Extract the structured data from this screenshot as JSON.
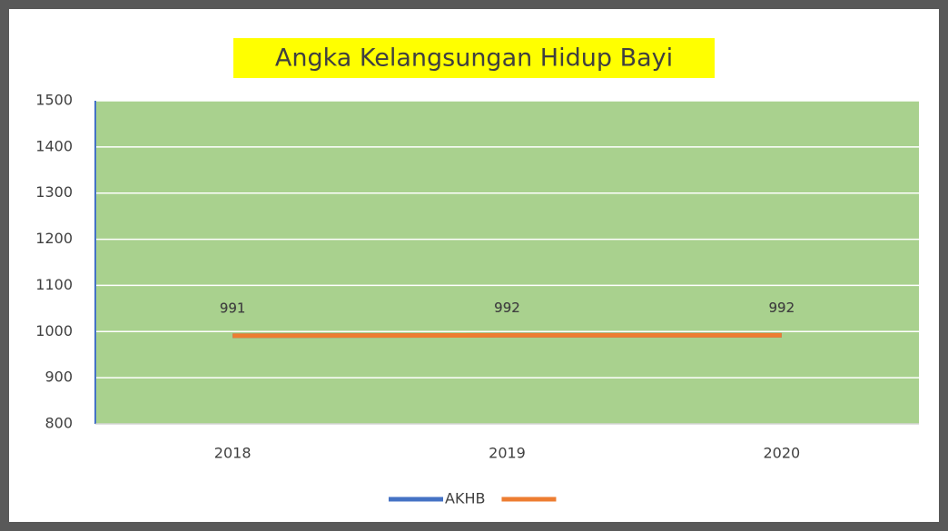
{
  "chart_data": {
    "type": "line",
    "title": "Angka Kelangsungan Hidup Bayi",
    "categories": [
      "2018",
      "2019",
      "2020"
    ],
    "series": [
      {
        "name": "AKHB",
        "color": "#4472c4",
        "values": [
          991,
          992,
          992
        ]
      },
      {
        "color": "#ed7d31",
        "values": [
          991,
          992,
          992
        ]
      }
    ],
    "ylim": [
      800,
      1500
    ],
    "yticks": [
      800,
      900,
      1000,
      1100,
      1200,
      1300,
      1400,
      1500
    ],
    "grid": true,
    "legend": "bottom",
    "plot_background": "#a9d18e",
    "title_background": "#ffff00"
  }
}
